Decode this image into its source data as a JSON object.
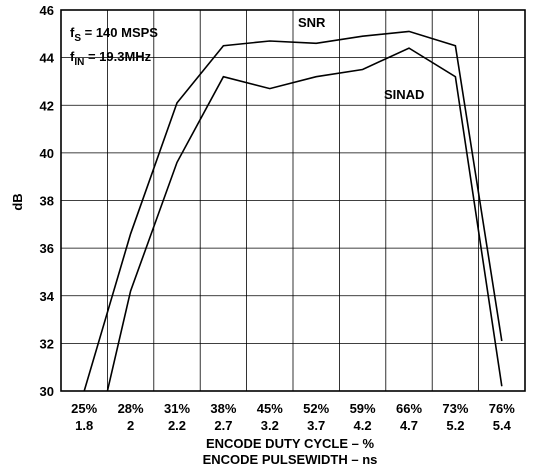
{
  "chart_data": {
    "type": "line",
    "x_ticks": [
      {
        "top": "25%",
        "bottom": "1.8"
      },
      {
        "top": "28%",
        "bottom": "2"
      },
      {
        "top": "31%",
        "bottom": "2.2"
      },
      {
        "top": "38%",
        "bottom": "2.7"
      },
      {
        "top": "45%",
        "bottom": "3.2"
      },
      {
        "top": "52%",
        "bottom": "3.7"
      },
      {
        "top": "59%",
        "bottom": "4.2"
      },
      {
        "top": "66%",
        "bottom": "4.7"
      },
      {
        "top": "73%",
        "bottom": "5.2"
      },
      {
        "top": "76%",
        "bottom": "5.4"
      }
    ],
    "x_index_range": [
      0,
      9
    ],
    "xlabel": "ENCODE DUTY CYCLE – %",
    "xlabel2": "ENCODE PULSEWIDTH – ns",
    "ylabel": "dB",
    "ylim": [
      30,
      46
    ],
    "y_ticks": [
      30,
      32,
      34,
      36,
      38,
      40,
      42,
      44,
      46
    ],
    "grid": true,
    "series": [
      {
        "name": "SNR",
        "x": [
          0.5,
          1.5,
          2.5,
          3.5,
          4.5,
          5.5,
          6.5,
          7.5,
          8.5,
          9.5
        ],
        "y": [
          30.0,
          36.6,
          42.1,
          44.5,
          44.7,
          44.6,
          44.9,
          45.1,
          44.5,
          32.1
        ]
      },
      {
        "name": "SINAD",
        "x": [
          1.0,
          1.5,
          2.5,
          3.5,
          4.5,
          5.5,
          6.5,
          7.5,
          8.5,
          9.5
        ],
        "y": [
          30.0,
          34.2,
          39.6,
          43.2,
          42.7,
          43.2,
          43.5,
          44.4,
          43.2,
          30.2
        ]
      }
    ],
    "annotations": {
      "fs_label": "f",
      "fs_sub": "S",
      "fs_value": " = 140 MSPS",
      "fin_label": "f",
      "fin_sub": "IN",
      "fin_value": " = 19.3MHz"
    }
  }
}
